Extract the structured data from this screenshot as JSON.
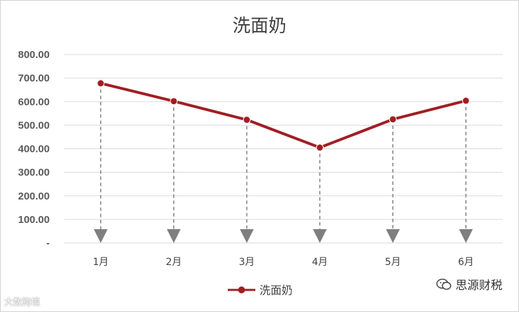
{
  "chart_data": {
    "type": "line",
    "title": "洗面奶",
    "categories": [
      "1月",
      "2月",
      "3月",
      "4月",
      "5月",
      "6月"
    ],
    "series": [
      {
        "name": "洗面奶",
        "values": [
          678,
          602,
          523,
          405,
          525,
          604
        ]
      }
    ],
    "y_tick_labels": [
      "-",
      "100.00",
      "200.00",
      "300.00",
      "400.00",
      "500.00",
      "600.00",
      "700.00",
      "800.00"
    ],
    "ylim": [
      0,
      800
    ],
    "grid": true,
    "legend": "bottom",
    "drop_lines": true,
    "colors": {
      "series": "#A11E23",
      "drop": "#7f7f7f",
      "grid": "#d9d9d9"
    }
  },
  "watermarks": {
    "left": "大数跨境",
    "right": "思源财税"
  }
}
